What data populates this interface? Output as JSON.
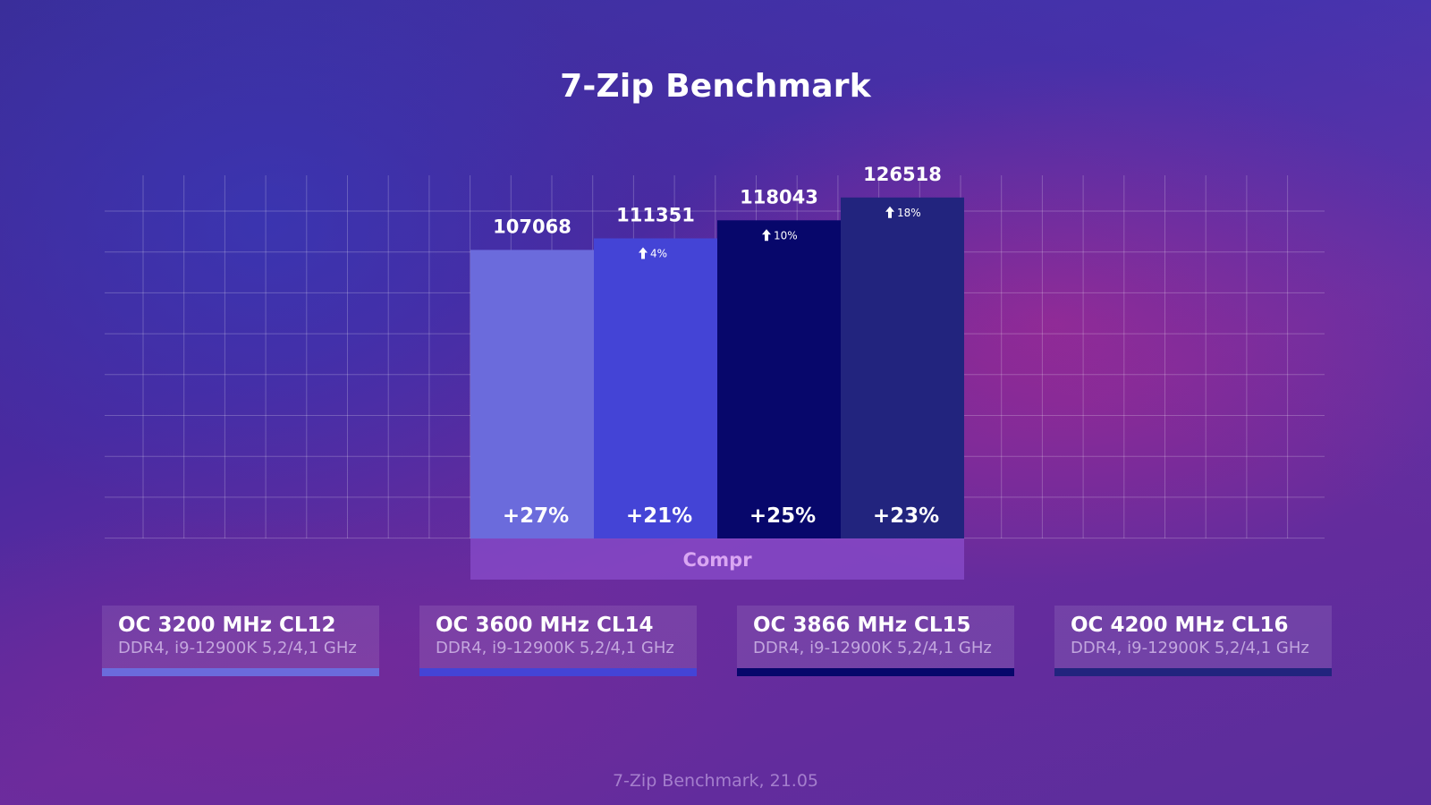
{
  "title": "7-Zip Benchmark",
  "footer": "7-Zip Benchmark, 21.05",
  "chart_data": {
    "type": "bar",
    "title": "7-Zip Benchmark",
    "categories": [
      "Compr"
    ],
    "ylim": [
      0,
      150000
    ],
    "grid": true,
    "series": [
      {
        "name": "OC 3200 MHz CL12",
        "subtitle": "DDR4, i9-12900K 5,2/4,1 GHz",
        "value": 107068,
        "value_label": "107068",
        "increase": "",
        "bottom_label": "+27%",
        "color": "#6b6bdc"
      },
      {
        "name": "OC 3600 MHz CL14",
        "subtitle": "DDR4, i9-12900K 5,2/4,1 GHz",
        "value": 111351,
        "value_label": "111351",
        "increase": "4%",
        "bottom_label": "+21%",
        "color": "#4444d6"
      },
      {
        "name": "OC 3866 MHz CL15",
        "subtitle": "DDR4, i9-12900K 5,2/4,1 GHz",
        "value": 118043,
        "value_label": "118043",
        "increase": "10%",
        "bottom_label": "+25%",
        "color": "#07076b"
      },
      {
        "name": "OC 4200 MHz CL16",
        "subtitle": "DDR4, i9-12900K 5,2/4,1 GHz",
        "value": 126518,
        "value_label": "126518",
        "increase": "18%",
        "bottom_label": "+23%",
        "color": "#22247e"
      }
    ]
  }
}
